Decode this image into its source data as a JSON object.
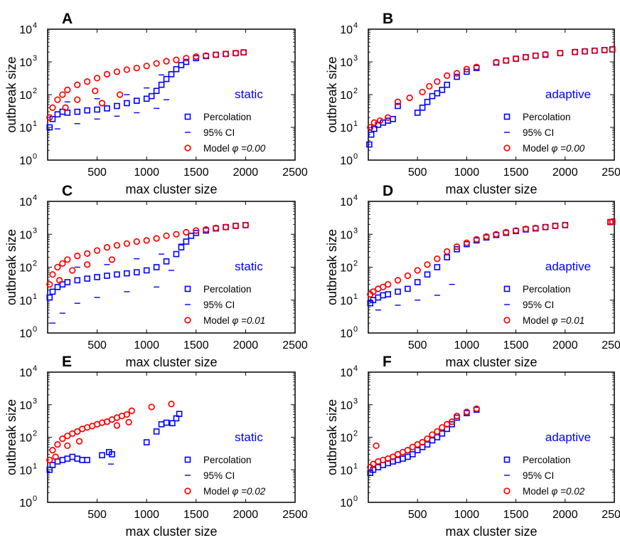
{
  "figure": {
    "xlabel": "max cluster size",
    "ylabel": "outbreak size",
    "x_ticks": [
      "500",
      "1000",
      "1500",
      "2000",
      "2500"
    ],
    "y_tick_base": "10",
    "y_tick_exponents": [
      "0",
      "1",
      "2",
      "3",
      "4"
    ],
    "legend": {
      "percolation": "Percolation",
      "ci": "95% CI",
      "model_prefix": "Model"
    },
    "colors": {
      "percolation": "#0000ff",
      "model": "#ff0000",
      "axis": "#000000",
      "mode_label": "#0000ff"
    }
  },
  "chart_data": [
    {
      "type": "scatter",
      "panel": "A",
      "mode": "static",
      "phi_label": "φ =0.00",
      "xlim": [
        0,
        2500
      ],
      "ylim_log10": [
        0,
        4
      ],
      "percolation": [
        [
          20,
          10
        ],
        [
          50,
          18
        ],
        [
          100,
          25
        ],
        [
          150,
          30
        ],
        [
          200,
          28
        ],
        [
          300,
          30
        ],
        [
          400,
          33
        ],
        [
          500,
          35
        ],
        [
          600,
          38
        ],
        [
          700,
          45
        ],
        [
          800,
          55
        ],
        [
          900,
          65
        ],
        [
          1000,
          75
        ],
        [
          1050,
          90
        ],
        [
          1100,
          130
        ],
        [
          1150,
          200
        ],
        [
          1200,
          300
        ],
        [
          1250,
          420
        ],
        [
          1300,
          600
        ],
        [
          1350,
          800
        ],
        [
          1400,
          1000
        ],
        [
          1500,
          1300
        ],
        [
          1600,
          1500
        ],
        [
          1700,
          1650
        ],
        [
          1800,
          1750
        ],
        [
          1900,
          1850
        ],
        [
          1980,
          1950
        ]
      ],
      "ci_low": [
        [
          100,
          9
        ],
        [
          300,
          13
        ],
        [
          500,
          18
        ],
        [
          700,
          22
        ],
        [
          900,
          28
        ],
        [
          1100,
          38
        ],
        [
          1200,
          70
        ]
      ],
      "ci_high": [
        [
          200,
          60
        ],
        [
          500,
          75
        ],
        [
          800,
          100
        ],
        [
          1000,
          160
        ],
        [
          1150,
          400
        ]
      ],
      "model": [
        [
          20,
          20
        ],
        [
          50,
          40
        ],
        [
          100,
          70
        ],
        [
          150,
          100
        ],
        [
          200,
          140
        ],
        [
          300,
          200
        ],
        [
          400,
          250
        ],
        [
          500,
          320
        ],
        [
          600,
          420
        ],
        [
          700,
          500
        ],
        [
          800,
          580
        ],
        [
          900,
          650
        ],
        [
          1000,
          750
        ],
        [
          1100,
          900
        ],
        [
          1200,
          1050
        ],
        [
          1300,
          1150
        ],
        [
          1400,
          1300
        ],
        [
          1500,
          1450
        ],
        [
          1600,
          1550
        ],
        [
          1700,
          1650
        ],
        [
          1800,
          1750
        ],
        [
          1900,
          1850
        ],
        [
          1980,
          1950
        ]
      ],
      "model_outliers": [
        [
          180,
          40
        ],
        [
          300,
          70
        ],
        [
          480,
          130
        ],
        [
          550,
          55
        ],
        [
          730,
          100
        ]
      ]
    },
    {
      "type": "scatter",
      "panel": "B",
      "mode": "adaptive",
      "phi_label": "φ =0.00",
      "xlim": [
        0,
        2500
      ],
      "ylim_log10": [
        0,
        4
      ],
      "percolation": [
        [
          10,
          3
        ],
        [
          30,
          6
        ],
        [
          60,
          9
        ],
        [
          100,
          12
        ],
        [
          150,
          14
        ],
        [
          200,
          16
        ],
        [
          250,
          18
        ],
        [
          300,
          45
        ],
        [
          500,
          28
        ],
        [
          550,
          40
        ],
        [
          600,
          60
        ],
        [
          650,
          90
        ],
        [
          700,
          110
        ],
        [
          750,
          140
        ],
        [
          800,
          200
        ],
        [
          900,
          350
        ],
        [
          1000,
          500
        ],
        [
          1100,
          650
        ],
        [
          1300,
          950
        ],
        [
          1400,
          1100
        ],
        [
          1500,
          1250
        ],
        [
          1600,
          1400
        ],
        [
          1700,
          1550
        ],
        [
          1800,
          1650
        ],
        [
          1950,
          1850
        ],
        [
          2100,
          2000
        ],
        [
          2200,
          2100
        ],
        [
          2300,
          2200
        ],
        [
          2400,
          2300
        ],
        [
          2480,
          2400
        ]
      ],
      "ci_low": [],
      "ci_high": [],
      "model": [
        [
          20,
          10
        ],
        [
          60,
          14
        ],
        [
          120,
          16
        ],
        [
          200,
          20
        ],
        [
          300,
          60
        ],
        [
          420,
          80
        ],
        [
          550,
          120
        ],
        [
          620,
          180
        ],
        [
          700,
          250
        ],
        [
          800,
          380
        ],
        [
          900,
          450
        ],
        [
          1000,
          600
        ],
        [
          1100,
          700
        ],
        [
          1300,
          980
        ],
        [
          1400,
          1100
        ],
        [
          1500,
          1250
        ],
        [
          1600,
          1400
        ],
        [
          1700,
          1550
        ],
        [
          1800,
          1700
        ],
        [
          1950,
          1850
        ],
        [
          2100,
          2000
        ],
        [
          2200,
          2100
        ],
        [
          2300,
          2200
        ],
        [
          2400,
          2300
        ],
        [
          2480,
          2400
        ]
      ],
      "model_outliers": []
    },
    {
      "type": "scatter",
      "panel": "C",
      "mode": "static",
      "phi_label": "φ =0.01",
      "xlim": [
        0,
        2500
      ],
      "ylim_log10": [
        0,
        4
      ],
      "percolation": [
        [
          20,
          12
        ],
        [
          50,
          18
        ],
        [
          100,
          25
        ],
        [
          150,
          30
        ],
        [
          200,
          35
        ],
        [
          300,
          40
        ],
        [
          400,
          45
        ],
        [
          500,
          50
        ],
        [
          600,
          55
        ],
        [
          700,
          60
        ],
        [
          800,
          65
        ],
        [
          900,
          70
        ],
        [
          1000,
          80
        ],
        [
          1100,
          100
        ],
        [
          1200,
          150
        ],
        [
          1300,
          250
        ],
        [
          1350,
          400
        ],
        [
          1400,
          600
        ],
        [
          1450,
          900
        ],
        [
          1500,
          1100
        ],
        [
          1600,
          1300
        ],
        [
          1700,
          1500
        ],
        [
          1800,
          1650
        ],
        [
          1900,
          1800
        ],
        [
          2000,
          1900
        ]
      ],
      "ci_low": [
        [
          50,
          2
        ],
        [
          150,
          4
        ],
        [
          300,
          8
        ],
        [
          500,
          12
        ],
        [
          800,
          18
        ],
        [
          1100,
          25
        ],
        [
          1250,
          80
        ]
      ],
      "ci_high": [
        [
          300,
          100
        ],
        [
          600,
          120
        ],
        [
          900,
          180
        ],
        [
          1150,
          250
        ],
        [
          1350,
          500
        ]
      ],
      "model": [
        [
          20,
          30
        ],
        [
          50,
          60
        ],
        [
          100,
          100
        ],
        [
          150,
          130
        ],
        [
          200,
          170
        ],
        [
          300,
          220
        ],
        [
          400,
          260
        ],
        [
          500,
          320
        ],
        [
          600,
          400
        ],
        [
          700,
          460
        ],
        [
          800,
          520
        ],
        [
          900,
          600
        ],
        [
          1000,
          650
        ],
        [
          1100,
          750
        ],
        [
          1200,
          900
        ],
        [
          1300,
          1000
        ],
        [
          1400,
          1150
        ],
        [
          1500,
          1300
        ],
        [
          1600,
          1400
        ],
        [
          1700,
          1550
        ],
        [
          1800,
          1650
        ],
        [
          1900,
          1800
        ],
        [
          2000,
          1900
        ]
      ],
      "model_outliers": [
        [
          120,
          40
        ],
        [
          250,
          80
        ],
        [
          400,
          120
        ],
        [
          650,
          170
        ]
      ]
    },
    {
      "type": "scatter",
      "panel": "D",
      "mode": "adaptive",
      "phi_label": "φ =0.01",
      "xlim": [
        0,
        2500
      ],
      "ylim_log10": [
        0,
        4
      ],
      "percolation": [
        [
          20,
          8
        ],
        [
          50,
          10
        ],
        [
          100,
          12
        ],
        [
          150,
          14
        ],
        [
          200,
          15
        ],
        [
          300,
          18
        ],
        [
          400,
          22
        ],
        [
          500,
          35
        ],
        [
          600,
          60
        ],
        [
          700,
          100
        ],
        [
          800,
          200
        ],
        [
          900,
          350
        ],
        [
          1000,
          500
        ],
        [
          1100,
          650
        ],
        [
          1200,
          800
        ],
        [
          1300,
          950
        ],
        [
          1400,
          1100
        ],
        [
          1500,
          1250
        ],
        [
          1600,
          1400
        ],
        [
          1700,
          1500
        ],
        [
          1800,
          1650
        ],
        [
          1900,
          1800
        ],
        [
          2000,
          1900
        ],
        [
          2460,
          2350
        ],
        [
          2480,
          2400
        ]
      ],
      "ci_low": [
        [
          100,
          5
        ],
        [
          300,
          7
        ],
        [
          500,
          10
        ],
        [
          700,
          14
        ],
        [
          850,
          30
        ]
      ],
      "ci_high": [],
      "model": [
        [
          20,
          15
        ],
        [
          50,
          18
        ],
        [
          100,
          22
        ],
        [
          150,
          25
        ],
        [
          200,
          30
        ],
        [
          300,
          40
        ],
        [
          400,
          55
        ],
        [
          500,
          80
        ],
        [
          600,
          120
        ],
        [
          700,
          180
        ],
        [
          800,
          300
        ],
        [
          900,
          420
        ],
        [
          1000,
          550
        ],
        [
          1100,
          700
        ],
        [
          1200,
          850
        ],
        [
          1300,
          1000
        ],
        [
          1400,
          1150
        ],
        [
          1500,
          1300
        ],
        [
          1600,
          1450
        ],
        [
          1700,
          1550
        ],
        [
          1800,
          1650
        ],
        [
          1900,
          1800
        ],
        [
          2000,
          1900
        ],
        [
          2460,
          2350
        ],
        [
          2480,
          2400
        ]
      ],
      "model_outliers": []
    },
    {
      "type": "scatter",
      "panel": "E",
      "mode": "static",
      "phi_label": "φ =0.02",
      "xlim": [
        0,
        2500
      ],
      "ylim_log10": [
        0,
        4
      ],
      "percolation": [
        [
          20,
          10
        ],
        [
          50,
          14
        ],
        [
          100,
          18
        ],
        [
          150,
          20
        ],
        [
          200,
          22
        ],
        [
          250,
          25
        ],
        [
          300,
          22
        ],
        [
          350,
          20
        ],
        [
          400,
          20
        ],
        [
          550,
          28
        ],
        [
          620,
          35
        ],
        [
          650,
          30
        ],
        [
          1000,
          70
        ],
        [
          1100,
          150
        ],
        [
          1150,
          250
        ],
        [
          1200,
          280
        ],
        [
          1260,
          270
        ],
        [
          1300,
          380
        ],
        [
          1330,
          520
        ]
      ],
      "ci_low": [
        [
          640,
          15
        ]
      ],
      "ci_high": [],
      "model": [
        [
          20,
          20
        ],
        [
          50,
          40
        ],
        [
          100,
          60
        ],
        [
          150,
          90
        ],
        [
          200,
          110
        ],
        [
          250,
          130
        ],
        [
          300,
          150
        ],
        [
          350,
          180
        ],
        [
          400,
          200
        ],
        [
          450,
          220
        ],
        [
          500,
          250
        ],
        [
          550,
          280
        ],
        [
          600,
          300
        ],
        [
          650,
          350
        ],
        [
          700,
          400
        ],
        [
          750,
          450
        ],
        [
          800,
          500
        ],
        [
          850,
          650
        ],
        [
          1050,
          850
        ],
        [
          1250,
          1050
        ]
      ],
      "model_outliers": [
        [
          80,
          25
        ],
        [
          200,
          55
        ],
        [
          320,
          75
        ],
        [
          700,
          230
        ],
        [
          820,
          290
        ]
      ]
    },
    {
      "type": "scatter",
      "panel": "F",
      "mode": "adaptive",
      "phi_label": "φ =0.02",
      "xlim": [
        0,
        2500
      ],
      "ylim_log10": [
        0,
        4
      ],
      "percolation": [
        [
          20,
          8
        ],
        [
          50,
          10
        ],
        [
          100,
          12
        ],
        [
          150,
          14
        ],
        [
          200,
          16
        ],
        [
          250,
          18
        ],
        [
          300,
          20
        ],
        [
          350,
          22
        ],
        [
          400,
          25
        ],
        [
          450,
          30
        ],
        [
          500,
          40
        ],
        [
          550,
          50
        ],
        [
          600,
          60
        ],
        [
          650,
          80
        ],
        [
          700,
          100
        ],
        [
          750,
          130
        ],
        [
          800,
          180
        ],
        [
          850,
          250
        ],
        [
          900,
          400
        ],
        [
          1000,
          550
        ],
        [
          1100,
          700
        ]
      ],
      "ci_low": [],
      "ci_high": [],
      "model": [
        [
          20,
          12
        ],
        [
          50,
          15
        ],
        [
          80,
          55
        ],
        [
          100,
          18
        ],
        [
          150,
          20
        ],
        [
          200,
          22
        ],
        [
          250,
          25
        ],
        [
          300,
          30
        ],
        [
          350,
          35
        ],
        [
          400,
          40
        ],
        [
          450,
          50
        ],
        [
          500,
          60
        ],
        [
          550,
          70
        ],
        [
          600,
          90
        ],
        [
          650,
          120
        ],
        [
          700,
          150
        ],
        [
          750,
          200
        ],
        [
          800,
          250
        ],
        [
          850,
          300
        ],
        [
          900,
          450
        ],
        [
          1000,
          600
        ],
        [
          1100,
          750
        ]
      ],
      "model_outliers": []
    }
  ]
}
